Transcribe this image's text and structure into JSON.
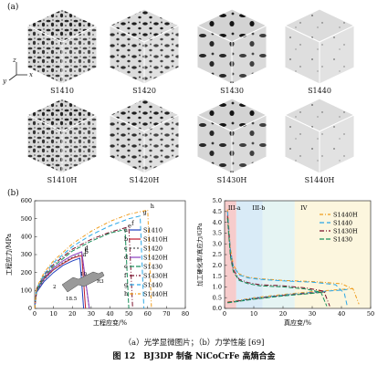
{
  "panel_a_label": "(a)",
  "panel_b_label": "(b)",
  "axes_indicator": {
    "z": "z",
    "x": "x",
    "y": "y"
  },
  "cubes": [
    {
      "label": "S1410"
    },
    {
      "label": "S1420"
    },
    {
      "label": "S1430"
    },
    {
      "label": "S1440"
    },
    {
      "label": "S1410H"
    },
    {
      "label": "S1420H"
    },
    {
      "label": "S1430H"
    },
    {
      "label": "S1440H"
    }
  ],
  "caption": "（a）光学显微图片；（b）力学性能 [69]",
  "figure_title": "图 12　BJ3DP 制备 NiCoCrFe 高熵合金",
  "chart_data": [
    {
      "type": "line",
      "xlabel": "工程应变/%",
      "ylabel": "工程应力/MPa",
      "xlim": [
        0,
        80
      ],
      "ylim": [
        0,
        600
      ],
      "xticks": [
        0,
        10,
        20,
        30,
        40,
        50,
        60,
        70,
        80
      ],
      "yticks": [
        0,
        100,
        200,
        300,
        400,
        500,
        600
      ],
      "legend_position": "right",
      "inset_labels": [
        "10",
        "R3",
        "18.5",
        "2"
      ],
      "series": [
        {
          "letter": "a",
          "name": "S1410",
          "color": "#1f3fbf",
          "dash": "",
          "x": [
            0,
            1,
            5,
            10,
            15,
            20,
            24,
            26
          ],
          "y": [
            0,
            90,
            150,
            200,
            240,
            265,
            280,
            0
          ]
        },
        {
          "letter": "b",
          "name": "S1410H",
          "color": "#c0182c",
          "dash": "",
          "x": [
            0,
            1,
            5,
            10,
            15,
            20,
            25,
            27
          ],
          "y": [
            0,
            100,
            165,
            215,
            250,
            280,
            295,
            0
          ]
        },
        {
          "letter": "c",
          "name": "S1420",
          "color": "#555555",
          "dash": "2,2",
          "x": [
            0,
            1,
            5,
            10,
            15,
            20,
            25,
            29
          ],
          "y": [
            0,
            95,
            160,
            215,
            255,
            285,
            305,
            0
          ]
        },
        {
          "letter": "d",
          "name": "S1420H",
          "color": "#8a3fbf",
          "dash": "",
          "x": [
            0,
            1,
            5,
            10,
            15,
            20,
            25,
            29
          ],
          "y": [
            0,
            100,
            170,
            225,
            265,
            295,
            315,
            0
          ]
        },
        {
          "letter": "e",
          "name": "S1430",
          "color": "#1a8f5a",
          "dash": "5,2",
          "x": [
            0,
            1,
            5,
            10,
            20,
            30,
            40,
            48,
            50
          ],
          "y": [
            0,
            100,
            175,
            235,
            320,
            375,
            420,
            440,
            0
          ]
        },
        {
          "letter": "f",
          "name": "S1430H",
          "color": "#7a0f2a",
          "dash": "5,2,1,2",
          "x": [
            0,
            1,
            5,
            10,
            20,
            30,
            40,
            50,
            52
          ],
          "y": [
            0,
            110,
            185,
            245,
            330,
            385,
            425,
            455,
            0
          ]
        },
        {
          "letter": "g",
          "name": "S1440",
          "color": "#2ba7e6",
          "dash": "5,3",
          "x": [
            0,
            1,
            5,
            10,
            20,
            30,
            40,
            50,
            56,
            58
          ],
          "y": [
            0,
            110,
            190,
            255,
            345,
            410,
            460,
            500,
            515,
            0
          ]
        },
        {
          "letter": "h",
          "name": "S1440H",
          "color": "#ef9c1c",
          "dash": "4,2,1,2",
          "x": [
            0,
            1,
            5,
            10,
            20,
            30,
            40,
            50,
            60,
            62
          ],
          "y": [
            0,
            115,
            200,
            265,
            360,
            430,
            485,
            525,
            548,
            0
          ]
        }
      ]
    },
    {
      "type": "line",
      "xlabel": "真应变/%",
      "ylabel": "加工硬化率/真应力/GPa",
      "xlim": [
        0,
        50
      ],
      "ylim": [
        0,
        5.0
      ],
      "xticks": [
        0,
        10,
        20,
        30,
        40,
        50
      ],
      "yticks": [
        0,
        0.5,
        1.0,
        1.5,
        2.0,
        2.5,
        3.0,
        3.5,
        4.0,
        4.5,
        5.0
      ],
      "stage_labels": [
        "III-a",
        "III-b",
        "IV"
      ],
      "legend_position": "top-right",
      "series": [
        {
          "name": "S1440H",
          "color": "#ef9c1c",
          "dash": "4,2,1,2",
          "hardening": {
            "x": [
              1,
              2,
              3,
              5,
              8,
              12,
              20,
              30,
              40,
              44,
              46
            ],
            "y": [
              4.6,
              2.8,
              2.0,
              1.6,
              1.45,
              1.38,
              1.3,
              1.25,
              1.15,
              0.9,
              0.2
            ]
          },
          "stress": {
            "x": [
              1,
              5,
              10,
              20,
              30,
              40,
              44
            ],
            "y": [
              0.3,
              0.38,
              0.5,
              0.65,
              0.78,
              0.88,
              0.92
            ]
          }
        },
        {
          "name": "S1440",
          "color": "#2ba7e6",
          "dash": "5,3",
          "hardening": {
            "x": [
              1,
              2,
              3,
              5,
              8,
              12,
              20,
              30,
              38,
              41,
              42
            ],
            "y": [
              4.5,
              2.7,
              1.95,
              1.55,
              1.42,
              1.35,
              1.28,
              1.22,
              1.1,
              0.7,
              0.1
            ]
          },
          "stress": {
            "x": [
              1,
              5,
              10,
              20,
              30,
              40,
              42
            ],
            "y": [
              0.28,
              0.36,
              0.48,
              0.62,
              0.75,
              0.85,
              0.88
            ]
          }
        },
        {
          "name": "S1430H",
          "color": "#7a0f2a",
          "dash": "5,2,1,2",
          "hardening": {
            "x": [
              1,
              2,
              3,
              5,
              8,
              12,
              20,
              28,
              34,
              36
            ],
            "y": [
              4.3,
              2.5,
              1.8,
              1.35,
              1.2,
              1.1,
              1.05,
              0.95,
              0.8,
              0.1
            ]
          },
          "stress": {
            "x": [
              1,
              5,
              10,
              20,
              30,
              35
            ],
            "y": [
              0.28,
              0.35,
              0.45,
              0.6,
              0.72,
              0.78
            ]
          }
        },
        {
          "name": "S1430",
          "color": "#1a8f5a",
          "dash": "5,2",
          "hardening": {
            "x": [
              1,
              2,
              3,
              5,
              8,
              12,
              20,
              28,
              33,
              35
            ],
            "y": [
              4.2,
              2.4,
              1.7,
              1.3,
              1.15,
              1.05,
              1.0,
              0.9,
              0.75,
              0.1
            ]
          },
          "stress": {
            "x": [
              1,
              5,
              10,
              20,
              30,
              34
            ],
            "y": [
              0.26,
              0.33,
              0.43,
              0.58,
              0.7,
              0.76
            ]
          }
        }
      ]
    }
  ]
}
